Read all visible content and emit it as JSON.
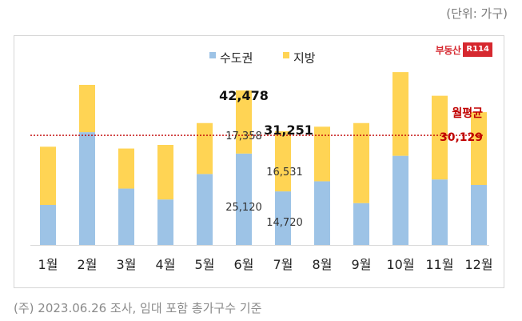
{
  "unit_label": "(단위: 가구)",
  "brand": {
    "text": "부동산",
    "mark": "R114"
  },
  "footnote": "(주) 2023.06.26 조사, 임대 포함 총가구수 기준",
  "colors": {
    "capital": "#9dc3e6",
    "local": "#ffd454",
    "avg_line": "#c00000"
  },
  "chart_data": {
    "type": "bar",
    "stacked": true,
    "categories": [
      "1월",
      "2월",
      "3월",
      "4월",
      "5월",
      "6월",
      "7월",
      "8월",
      "9월",
      "10월",
      "11월",
      "12월"
    ],
    "series": [
      {
        "name": "수도권",
        "values": [
          11000,
          31000,
          15500,
          12500,
          19500,
          25120,
          14720,
          17500,
          11500,
          24500,
          18000,
          16500
        ]
      },
      {
        "name": "지방",
        "values": [
          16000,
          13000,
          11000,
          15000,
          14000,
          17358,
          16531,
          15000,
          22000,
          23000,
          23000,
          20000
        ]
      }
    ],
    "ylim": [
      0,
      55000
    ],
    "legend": "top-center",
    "annotations": {
      "june_total": "42,478",
      "june_local": "17,358",
      "june_capital": "25,120",
      "july_total": "31,251",
      "july_local": "16,531",
      "july_capital": "14,720"
    },
    "average": {
      "label": "월평균",
      "value": 30129,
      "value_label": "30,129"
    }
  }
}
